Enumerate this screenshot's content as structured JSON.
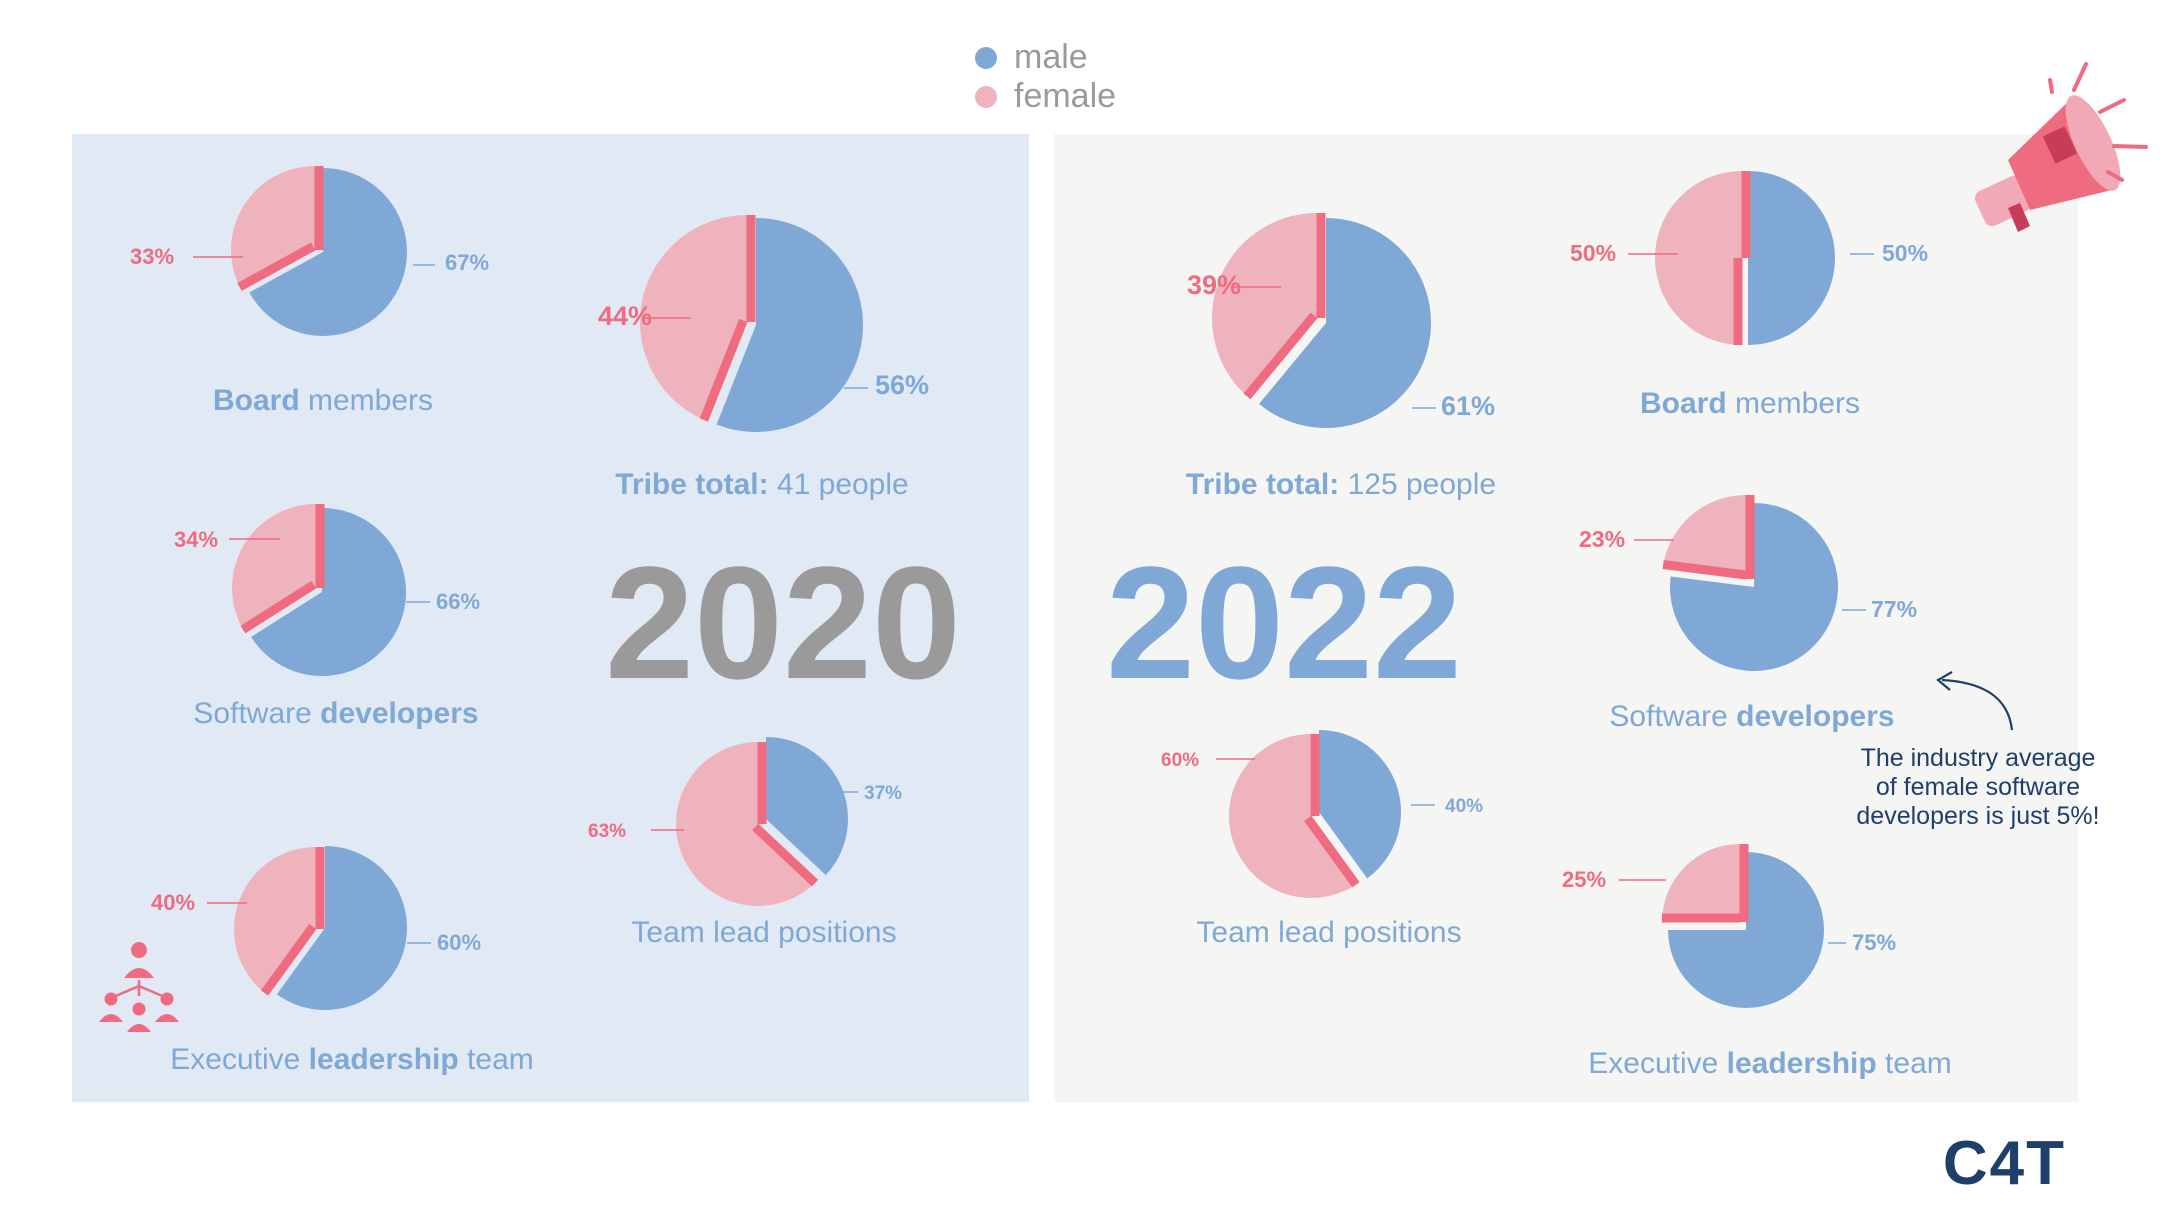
{
  "colors": {
    "male": "#7fa8d6",
    "female": "#efb3be",
    "accent": "#ef6b80",
    "panel_2020": "#e1eaf4",
    "panel_2022": "#f5f5f4",
    "text_blue": "#7fa8d6",
    "year_2020": "#9a9a9a",
    "year_2022": "#7fa8d6",
    "brand": "#1f3f6b",
    "legend_text": "#9a9a9a"
  },
  "legend": {
    "male": "male",
    "female": "female"
  },
  "year_2020": "2020",
  "year_2022": "2022",
  "note": [
    "The industry average",
    "of female software",
    "developers is just 5%!"
  ],
  "brand_logo": "C4T",
  "chart_data": [
    {
      "type": "pie",
      "year": "2020",
      "title_bold": "Board",
      "title_rest": " members",
      "female": 33,
      "male": 67,
      "female_label": "33%",
      "male_label": "67%"
    },
    {
      "type": "pie",
      "year": "2020",
      "title_bold": "Tribe total:",
      "title_rest": " 41 people",
      "female": 44,
      "male": 56,
      "female_label": "44%",
      "male_label": "56%"
    },
    {
      "type": "pie",
      "year": "2020",
      "title_pre": "Software ",
      "title_bold": "developers",
      "female": 34,
      "male": 66,
      "female_label": "34%",
      "male_label": "66%"
    },
    {
      "type": "pie",
      "year": "2020",
      "title_plain": "Team lead positions",
      "female": 63,
      "male": 37,
      "female_label": "63%",
      "male_label": "37%"
    },
    {
      "type": "pie",
      "year": "2020",
      "title_pre": "Executive ",
      "title_bold": "leadership",
      "title_rest": " team",
      "female": 40,
      "male": 60,
      "female_label": "40%",
      "male_label": "60%"
    },
    {
      "type": "pie",
      "year": "2022",
      "title_bold": "Tribe total:",
      "title_rest": " 125 people",
      "female": 39,
      "male": 61,
      "female_label": "39%",
      "male_label": "61%"
    },
    {
      "type": "pie",
      "year": "2022",
      "title_bold": "Board",
      "title_rest": " members",
      "female": 50,
      "male": 50,
      "female_label": "50%",
      "male_label": "50%"
    },
    {
      "type": "pie",
      "year": "2022",
      "title_pre": "Software ",
      "title_bold": "developers",
      "female": 23,
      "male": 77,
      "female_label": "23%",
      "male_label": "77%"
    },
    {
      "type": "pie",
      "year": "2022",
      "title_plain": "Team lead positions",
      "female": 60,
      "male": 40,
      "female_label": "60%",
      "male_label": "40%"
    },
    {
      "type": "pie",
      "year": "2022",
      "title_pre": "Executive ",
      "title_bold": "leadership",
      "title_rest": " team",
      "female": 25,
      "male": 75,
      "female_label": "25%",
      "male_label": "75%"
    }
  ]
}
